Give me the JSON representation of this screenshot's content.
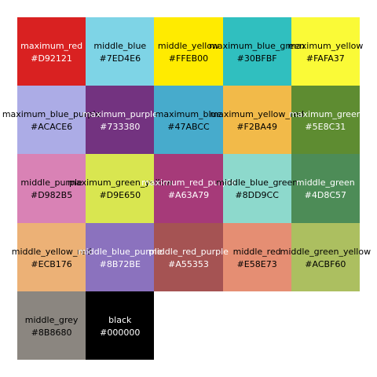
{
  "swatches": [
    {
      "name": "maximum_red",
      "hex": "#D92121",
      "text": "light"
    },
    {
      "name": "middle_blue",
      "hex": "#7ED4E6",
      "text": "dark"
    },
    {
      "name": "middle_yellow",
      "hex": "#FFEB00",
      "text": "dark"
    },
    {
      "name": "maximum_blue_green",
      "hex": "#30BFBF",
      "text": "dark"
    },
    {
      "name": "maximum_yellow",
      "hex": "#FAFA37",
      "text": "dark"
    },
    {
      "name": "maximum_blue_purple",
      "hex": "#ACACE6",
      "text": "dark"
    },
    {
      "name": "maximum_purple",
      "hex": "#733380",
      "text": "light"
    },
    {
      "name": "maximum_blue",
      "hex": "#47ABCC",
      "text": "dark"
    },
    {
      "name": "maximum_yellow_red",
      "hex": "#F2BA49",
      "text": "dark"
    },
    {
      "name": "maximum_green",
      "hex": "#5E8C31",
      "text": "light"
    },
    {
      "name": "middle_purple",
      "hex": "#D982B5",
      "text": "dark"
    },
    {
      "name": "maximum_green_yellow",
      "hex": "#D9E650",
      "text": "dark"
    },
    {
      "name": "maximum_red_purple",
      "hex": "#A63A79",
      "text": "light"
    },
    {
      "name": "middle_blue_green",
      "hex": "#8DD9CC",
      "text": "dark"
    },
    {
      "name": "middle_green",
      "hex": "#4D8C57",
      "text": "light"
    },
    {
      "name": "middle_yellow_red",
      "hex": "#ECB176",
      "text": "dark"
    },
    {
      "name": "middle_blue_purple",
      "hex": "#8B72BE",
      "text": "light"
    },
    {
      "name": "middle_red_purple",
      "hex": "#A55353",
      "text": "light"
    },
    {
      "name": "middle_red",
      "hex": "#E58E73",
      "text": "dark"
    },
    {
      "name": "middle_green_yellow",
      "hex": "#ACBF60",
      "text": "dark"
    },
    {
      "name": "middle_grey",
      "hex": "#8B8680",
      "text": "dark"
    },
    {
      "name": "black",
      "hex": "#000000",
      "text": "light"
    }
  ]
}
